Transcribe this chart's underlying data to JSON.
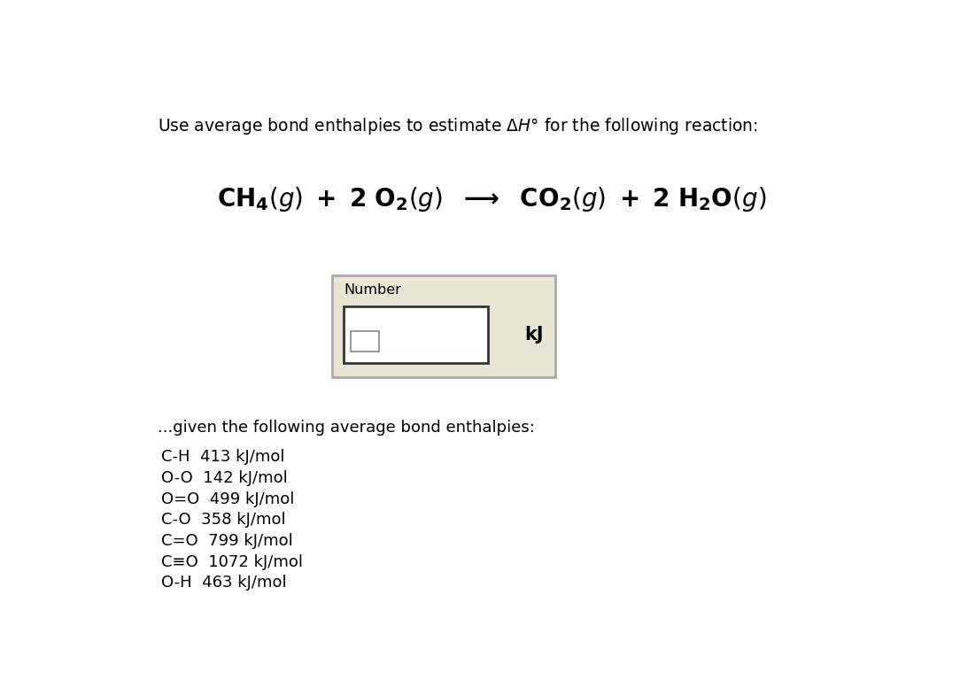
{
  "background_color": "#ffffff",
  "title_fontsize": 13.5,
  "eq_fontsize": 20,
  "box_label": "Number",
  "box_unit": "kJ",
  "given_text": "...given the following average bond enthalpies:",
  "bond_enthalpies": [
    "C-H  413 kJ/mol",
    "O-O  142 kJ/mol",
    "O=O  499 kJ/mol",
    "C-O  358 kJ/mol",
    "C=O  799 kJ/mol",
    "C≡O  1072 kJ/mol",
    "O-H  463 kJ/mol"
  ],
  "box_bg": "#e8e5d5",
  "box_border": "#aaaaaa",
  "input_bg": "#ffffff",
  "input_border": "#333333",
  "small_box_border": "#888888"
}
